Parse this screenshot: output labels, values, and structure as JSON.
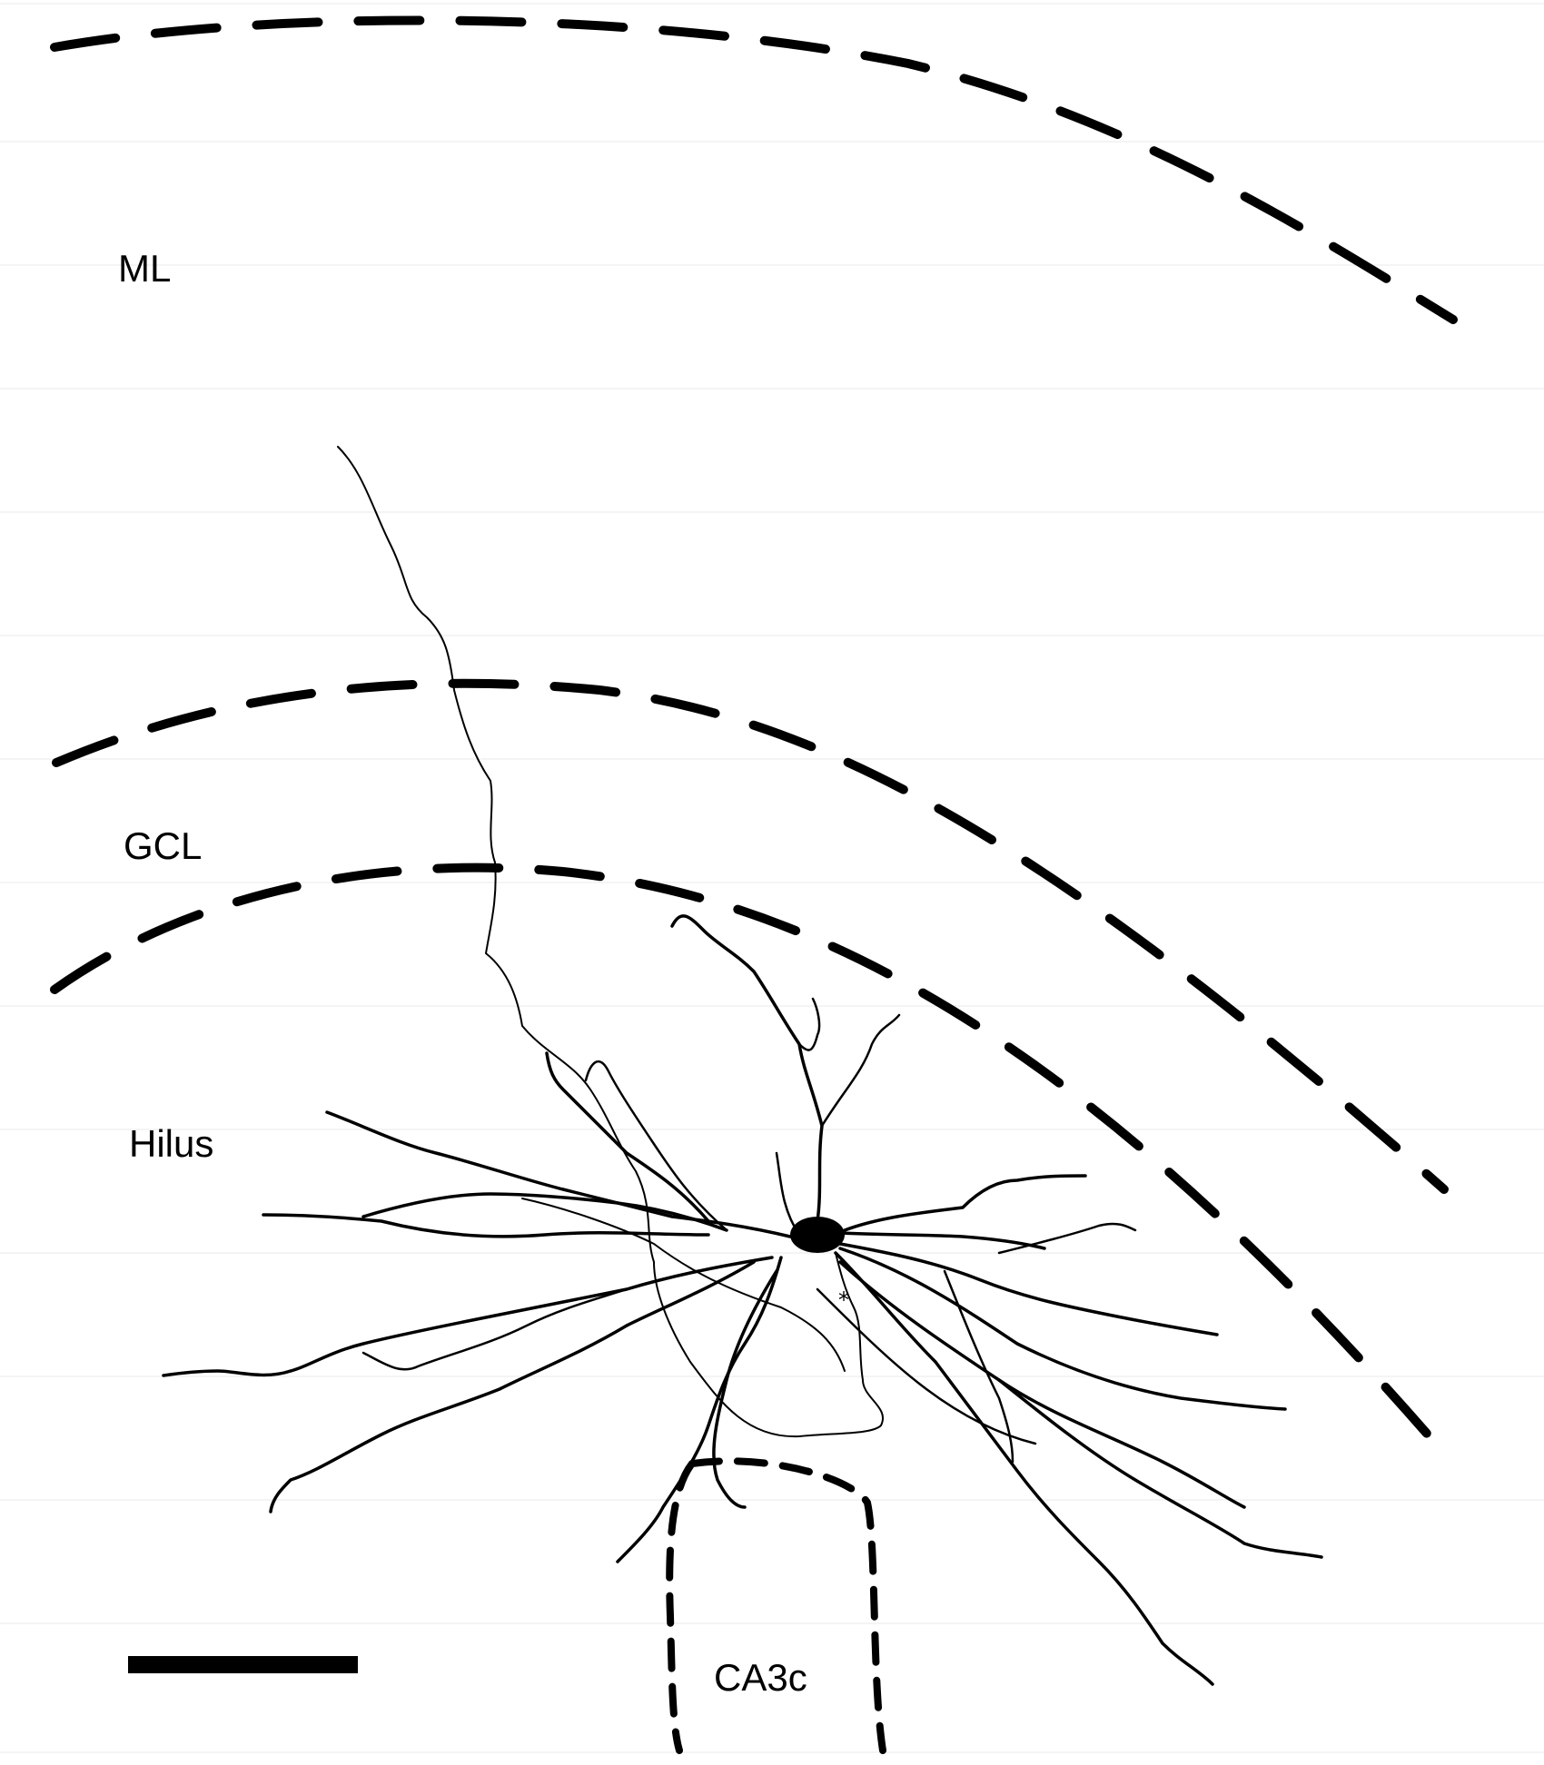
{
  "regions": {
    "ml": "ML",
    "gcl": "GCL",
    "hilus": "Hilus",
    "ca3c": "CA3c"
  },
  "soma_marker": "*",
  "colors": {
    "ink": "#000000",
    "background": "#ffffff"
  }
}
